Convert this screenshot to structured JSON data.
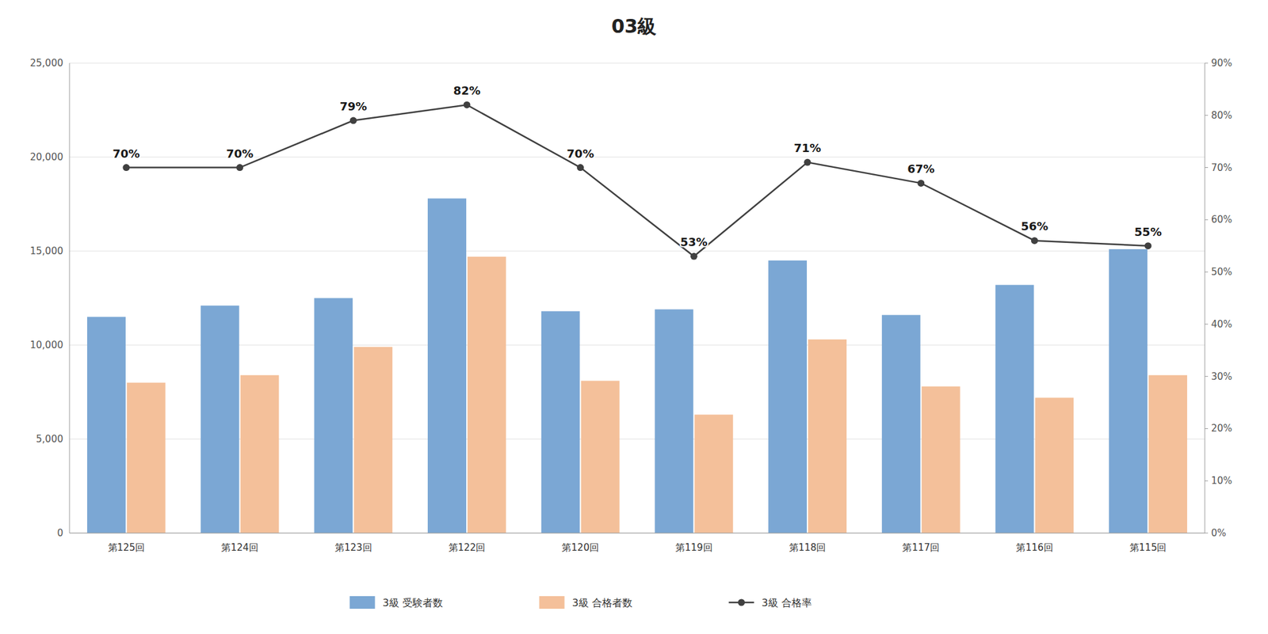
{
  "chart_data": {
    "type": "bar",
    "title": "　03級　",
    "categories": [
      "第125回",
      "第124回",
      "第123回",
      "第122回",
      "第120回",
      "第119回",
      "第118回",
      "第117回",
      "第116回",
      "第115回"
    ],
    "series": [
      {
        "name": "3級 受験者数",
        "type": "bar",
        "color": "#7BA7D4",
        "values": [
          11500,
          12100,
          12500,
          17800,
          11800,
          11900,
          14500,
          11600,
          13200,
          15100
        ]
      },
      {
        "name": "3級 合格者数",
        "type": "bar",
        "color": "#F4C09A",
        "values": [
          8000,
          8400,
          9900,
          14700,
          8100,
          6300,
          10300,
          7800,
          7200,
          8400
        ]
      },
      {
        "name": "3級 合格率",
        "type": "line",
        "axis": "y2",
        "color": "#404040",
        "marker": "circle",
        "line_style": "solid",
        "data_labels": true,
        "values": [
          0.7,
          0.7,
          0.79,
          0.82,
          0.7,
          0.53,
          0.71,
          0.67,
          0.56,
          0.55
        ],
        "value_labels": [
          "70%",
          "70%",
          "79%",
          "82%",
          "70%",
          "53%",
          "71%",
          "67%",
          "56%",
          "55%"
        ]
      }
    ],
    "ylim": [
      0,
      25000
    ],
    "yticks": [
      0,
      {
        "value": 5000,
        "label": "5,000"
      },
      {
        "value": 10000,
        "label": "10,000"
      },
      {
        "value": 15000,
        "label": "15,000"
      },
      {
        "value": 20000,
        "label": "20,000"
      },
      {
        "value": 25000,
        "label": "25,000"
      }
    ],
    "y2lim": [
      0,
      0.9
    ],
    "y2ticks": [
      {
        "value": 0.0,
        "label": "0%"
      },
      {
        "value": 0.1,
        "label": "10%"
      },
      {
        "value": 0.2,
        "label": "20%"
      },
      {
        "value": 0.3,
        "label": "30%"
      },
      {
        "value": 0.4,
        "label": "40%"
      },
      {
        "value": 0.5,
        "label": "50%"
      },
      {
        "value": 0.6,
        "label": "60%"
      },
      {
        "value": 0.7,
        "label": "70%"
      },
      {
        "value": 0.8,
        "label": "80%"
      },
      {
        "value": 0.9,
        "label": "90%"
      }
    ],
    "grid": true,
    "legend": "bottom"
  }
}
